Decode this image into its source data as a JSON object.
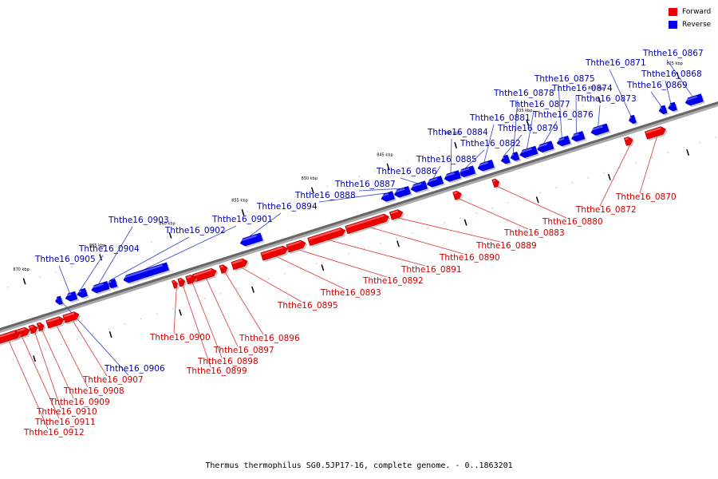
{
  "legend": [
    {
      "label": "Forward",
      "color": "#ee0000"
    },
    {
      "label": "Reverse",
      "color": "#0000ee"
    }
  ],
  "footer": "Thermus thermophilus SG0.5JP17-16, complete genome. - 0..1863201",
  "colors": {
    "forward": "#ee0000",
    "reverse": "#0000ee",
    "forward_label": "#cc0000",
    "reverse_label": "#0000aa",
    "axis": "#888888"
  },
  "scale_ticks": [
    {
      "label": "825 kbp"
    },
    {
      "label": "830 kbp"
    },
    {
      "label": "835 kbp"
    },
    {
      "label": "840 kbp"
    },
    {
      "label": "845 kbp"
    },
    {
      "label": "850 kbp"
    },
    {
      "label": "855 kbp"
    },
    {
      "label": "860 kbp"
    },
    {
      "label": "865 kbp"
    },
    {
      "label": "870 kbp"
    }
  ],
  "genes": [
    {
      "name": "Ththe16_0867",
      "strand": "reverse"
    },
    {
      "name": "Ththe16_0868",
      "strand": "reverse"
    },
    {
      "name": "Ththe16_0869",
      "strand": "reverse"
    },
    {
      "name": "Ththe16_0870",
      "strand": "forward"
    },
    {
      "name": "Ththe16_0871",
      "strand": "reverse"
    },
    {
      "name": "Ththe16_0872",
      "strand": "forward"
    },
    {
      "name": "Ththe16_0873",
      "strand": "reverse"
    },
    {
      "name": "Ththe16_0874",
      "strand": "reverse"
    },
    {
      "name": "Ththe16_0875",
      "strand": "reverse"
    },
    {
      "name": "Ththe16_0876",
      "strand": "reverse"
    },
    {
      "name": "Ththe16_0877",
      "strand": "reverse"
    },
    {
      "name": "Ththe16_0878",
      "strand": "reverse"
    },
    {
      "name": "Ththe16_0879",
      "strand": "reverse"
    },
    {
      "name": "Ththe16_0880",
      "strand": "forward"
    },
    {
      "name": "Ththe16_0881",
      "strand": "reverse"
    },
    {
      "name": "Ththe16_0882",
      "strand": "reverse"
    },
    {
      "name": "Ththe16_0883",
      "strand": "forward"
    },
    {
      "name": "Ththe16_0884",
      "strand": "reverse"
    },
    {
      "name": "Ththe16_0885",
      "strand": "reverse"
    },
    {
      "name": "Ththe16_0886",
      "strand": "reverse"
    },
    {
      "name": "Ththe16_0887",
      "strand": "reverse"
    },
    {
      "name": "Ththe16_0888",
      "strand": "reverse"
    },
    {
      "name": "Ththe16_0889",
      "strand": "forward"
    },
    {
      "name": "Ththe16_0890",
      "strand": "forward"
    },
    {
      "name": "Ththe16_0891",
      "strand": "forward"
    },
    {
      "name": "Ththe16_0892",
      "strand": "forward"
    },
    {
      "name": "Ththe16_0893",
      "strand": "forward"
    },
    {
      "name": "Ththe16_0894",
      "strand": "reverse"
    },
    {
      "name": "Ththe16_0895",
      "strand": "forward"
    },
    {
      "name": "Ththe16_0896",
      "strand": "forward"
    },
    {
      "name": "Ththe16_0897",
      "strand": "forward"
    },
    {
      "name": "Ththe16_0898",
      "strand": "forward"
    },
    {
      "name": "Ththe16_0899",
      "strand": "forward"
    },
    {
      "name": "Ththe16_0900",
      "strand": "forward"
    },
    {
      "name": "Ththe16_0901",
      "strand": "reverse"
    },
    {
      "name": "Ththe16_0902",
      "strand": "reverse"
    },
    {
      "name": "Ththe16_0903",
      "strand": "reverse"
    },
    {
      "name": "Ththe16_0904",
      "strand": "reverse"
    },
    {
      "name": "Ththe16_0905",
      "strand": "reverse"
    },
    {
      "name": "Ththe16_0906",
      "strand": "reverse"
    },
    {
      "name": "Ththe16_0907",
      "strand": "forward"
    },
    {
      "name": "Ththe16_0908",
      "strand": "forward"
    },
    {
      "name": "Ththe16_0909",
      "strand": "forward"
    },
    {
      "name": "Ththe16_0910",
      "strand": "forward"
    },
    {
      "name": "Ththe16_0911",
      "strand": "forward"
    },
    {
      "name": "Ththe16_0912",
      "strand": "forward"
    }
  ]
}
